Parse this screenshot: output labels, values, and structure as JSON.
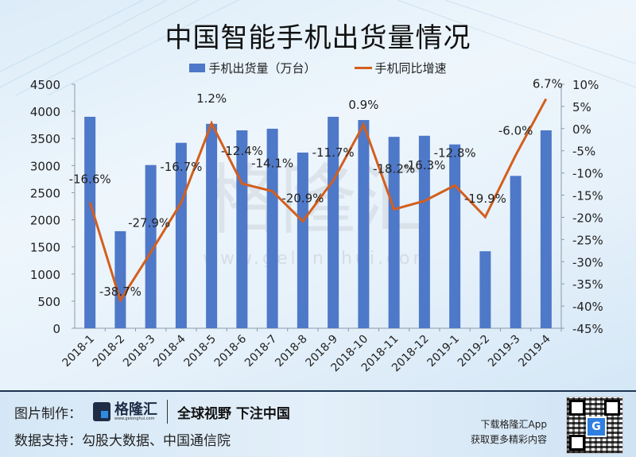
{
  "title": "中国智能手机出货量情况",
  "legend": {
    "bar_label": "手机出货量（万台）",
    "line_label": "手机同比增速"
  },
  "watermark": {
    "logo": "格隆汇",
    "url": "www.gelonghui.com"
  },
  "colors": {
    "bar": "#4e78c8",
    "line": "#d35f1e",
    "footer_divider": "#1e3552"
  },
  "chart_data": {
    "type": "bar+line",
    "title": "中国智能手机出货量情况",
    "categories": [
      "2018-1",
      "2018-2",
      "2018-3",
      "2018-4",
      "2018-5",
      "2018-6",
      "2018-7",
      "2018-8",
      "2018-9",
      "2018-10",
      "2018-11",
      "2018-12",
      "2019-1",
      "2019-2",
      "2019-3",
      "2019-4"
    ],
    "series": [
      {
        "name": "手机出货量（万台）",
        "type": "bar",
        "axis": "left",
        "values": [
          3900,
          1790,
          3010,
          3420,
          3770,
          3650,
          3680,
          3240,
          3900,
          3840,
          3530,
          3550,
          3390,
          1420,
          2810,
          3650
        ]
      },
      {
        "name": "手机同比增速",
        "type": "line",
        "axis": "right",
        "values": [
          -16.6,
          -38.7,
          -27.9,
          -16.7,
          1.2,
          -12.4,
          -14.1,
          -20.9,
          -11.7,
          0.9,
          -18.2,
          -16.3,
          -12.8,
          -19.9,
          -6.0,
          6.7
        ],
        "labels": [
          "-16.6%",
          "-38.7%",
          "-27.9%",
          "-16.7%",
          "1.2%",
          "-12.4%",
          "-14.1%",
          "-20.9%",
          "-11.7%",
          "0.9%",
          "-18.2%",
          "-16.3%",
          "-12.8%",
          "-19.9%",
          "-6.0%",
          "6.7%"
        ]
      }
    ],
    "left_axis": {
      "ylim": [
        0,
        4500
      ],
      "ticks": [
        "0",
        "500",
        "1000",
        "1500",
        "2000",
        "2500",
        "3000",
        "3500",
        "4000",
        "4500"
      ]
    },
    "right_axis": {
      "ylim": [
        -45,
        10
      ],
      "ticks": [
        "-45%",
        "-40%",
        "-35%",
        "-30%",
        "-25%",
        "-20%",
        "-15%",
        "-10%",
        "-5%",
        "0%",
        "5%",
        "10%"
      ]
    },
    "xlabel": "",
    "ylabel": "",
    "grid": false,
    "legend_position": "top"
  },
  "footer": {
    "made_by_label": "图片制作：",
    "logo_name": "格隆汇",
    "logo_url": "www.gelonghui.com",
    "slogan": "全球视野 下注中国",
    "data_source": "数据支持：勾股大数据、中国通信院",
    "app_line1": "下载格隆汇App",
    "app_line2": "获取更多精彩内容",
    "qr_center": "G"
  }
}
